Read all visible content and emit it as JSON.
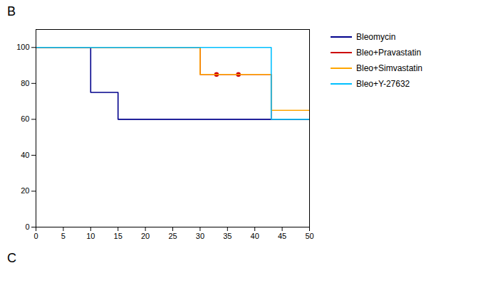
{
  "chart_data": {
    "type": "line",
    "title": "B",
    "xlim": [
      0,
      50
    ],
    "ylim": [
      0,
      110
    ],
    "xticks": [
      0,
      5,
      10,
      15,
      20,
      25,
      30,
      35,
      40,
      45,
      50
    ],
    "yticks": [
      0,
      20,
      40,
      60,
      80,
      100
    ],
    "grid": false,
    "legend": "right",
    "annotations": [
      "C"
    ],
    "series": [
      {
        "name": "Bleomycin",
        "color": "#00008B",
        "x": [
          0,
          10,
          10,
          15,
          15,
          50
        ],
        "values": [
          100,
          100,
          75,
          75,
          60,
          60
        ]
      },
      {
        "name": "Bleo+Pravastatin",
        "color": "#CC0000",
        "x": [
          0,
          30,
          30,
          43,
          43,
          50
        ],
        "values": [
          100,
          100,
          85,
          85,
          60,
          60
        ],
        "marker": "circle",
        "censored": {
          "x": [
            33,
            37
          ],
          "values": [
            85,
            85
          ]
        }
      },
      {
        "name": "Bleo+Simvastatin",
        "color": "#FFA500",
        "x": [
          0,
          30,
          30,
          43,
          43,
          50
        ],
        "values": [
          100,
          100,
          85,
          85,
          65,
          65
        ]
      },
      {
        "name": "Bleo+Y-27632",
        "color": "#00BFFF",
        "x": [
          0,
          30,
          30,
          43,
          43,
          50
        ],
        "values": [
          100,
          100,
          100,
          100,
          60,
          60
        ]
      }
    ]
  }
}
